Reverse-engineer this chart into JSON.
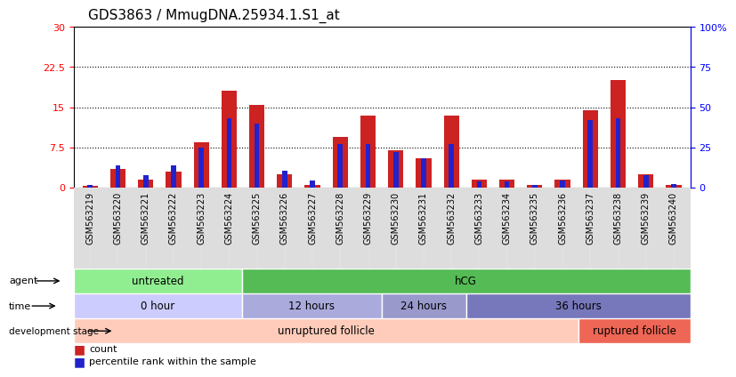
{
  "title": "GDS3863 / MmugDNA.25934.1.S1_at",
  "samples": [
    "GSM563219",
    "GSM563220",
    "GSM563221",
    "GSM563222",
    "GSM563223",
    "GSM563224",
    "GSM563225",
    "GSM563226",
    "GSM563227",
    "GSM563228",
    "GSM563229",
    "GSM563230",
    "GSM563231",
    "GSM563232",
    "GSM563233",
    "GSM563234",
    "GSM563235",
    "GSM563236",
    "GSM563237",
    "GSM563238",
    "GSM563239",
    "GSM563240"
  ],
  "count_values": [
    0.3,
    3.5,
    1.5,
    3.0,
    8.5,
    18.0,
    15.5,
    2.5,
    0.5,
    9.5,
    13.5,
    7.0,
    5.5,
    13.5,
    1.5,
    1.5,
    0.5,
    1.5,
    14.5,
    20.0,
    2.5,
    0.5
  ],
  "percentile_values": [
    1.5,
    13.5,
    7.5,
    13.5,
    25.0,
    43.0,
    40.0,
    10.5,
    4.5,
    27.0,
    27.0,
    22.0,
    18.0,
    27.0,
    4.0,
    4.0,
    1.5,
    4.5,
    42.0,
    43.0,
    7.5,
    2.0
  ],
  "agent_groups": [
    {
      "label": "untreated",
      "start": 0,
      "end": 6,
      "color": "#90EE90"
    },
    {
      "label": "hCG",
      "start": 6,
      "end": 22,
      "color": "#55BB55"
    }
  ],
  "time_groups": [
    {
      "label": "0 hour",
      "start": 0,
      "end": 6,
      "color": "#CCCCFF"
    },
    {
      "label": "12 hours",
      "start": 6,
      "end": 11,
      "color": "#AAAADD"
    },
    {
      "label": "24 hours",
      "start": 11,
      "end": 14,
      "color": "#9999CC"
    },
    {
      "label": "36 hours",
      "start": 14,
      "end": 22,
      "color": "#7777BB"
    }
  ],
  "dev_groups": [
    {
      "label": "unruptured follicle",
      "start": 0,
      "end": 18,
      "color": "#FFCCBB"
    },
    {
      "label": "ruptured follicle",
      "start": 18,
      "end": 22,
      "color": "#EE6655"
    }
  ],
  "ylim_left": [
    0,
    30
  ],
  "ylim_right": [
    0,
    100
  ],
  "yticks_left": [
    0,
    7.5,
    15,
    22.5,
    30
  ],
  "ytick_labels_left": [
    "0",
    "7.5",
    "15",
    "22.5",
    "30"
  ],
  "yticks_right": [
    0,
    25,
    50,
    75,
    100
  ],
  "ytick_labels_right": [
    "0",
    "25",
    "50",
    "75",
    "100%"
  ],
  "count_color": "#CC2222",
  "percentile_color": "#2222CC",
  "grid_color": "#000000",
  "title_fontsize": 11
}
